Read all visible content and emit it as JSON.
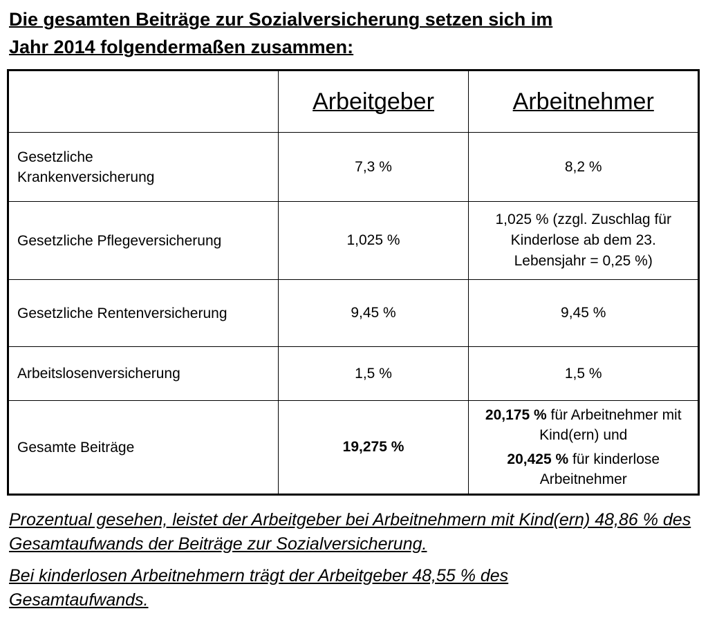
{
  "header": {
    "title_lines": [
      "Die gesamten Beiträge zur Sozialversicherung setzen sich im",
      "Jahr 2014 folgendermaßen zusammen:"
    ]
  },
  "table": {
    "columns": [
      "Arbeitgeber",
      "Arbeitnehmer"
    ],
    "rows": [
      [
        "Gesetzliche Krankenversicherung",
        "7,3 %",
        "8,2 %"
      ],
      [
        "Gesetzliche Pflegeversicherung",
        "1,025 %",
        "1,025 % (zzgl. Zuschlag für Kinderlose ab dem 23. Lebensjahr = 0,25 %)"
      ],
      [
        "Gesetzliche Rentenversicherung",
        "9,45 %",
        "9,45 %"
      ],
      [
        "Arbeitslosenversicherung",
        "1,5 %",
        "1,5 %"
      ]
    ],
    "total": {
      "label": "Gesamte Beiträge",
      "employer": "19,275 %",
      "employee": [
        {
          "bold": "20,175 %",
          "text": "für Arbeitnehmer mit Kind(ern) und"
        },
        {
          "bold": "20,425 %",
          "text": "für kinderlose Arbeitnehmer"
        }
      ]
    }
  },
  "notes": [
    "Prozentual gesehen, leistet der Arbeitgeber bei Arbeitnehmern mit Kind(ern) 48,86 % des Gesamtaufwands der Beiträge zur Sozialversicherung.",
    "Bei kinderlosen Arbeitnehmern trägt der Arbeitgeber 48,55 % des Gesamtaufwands."
  ]
}
